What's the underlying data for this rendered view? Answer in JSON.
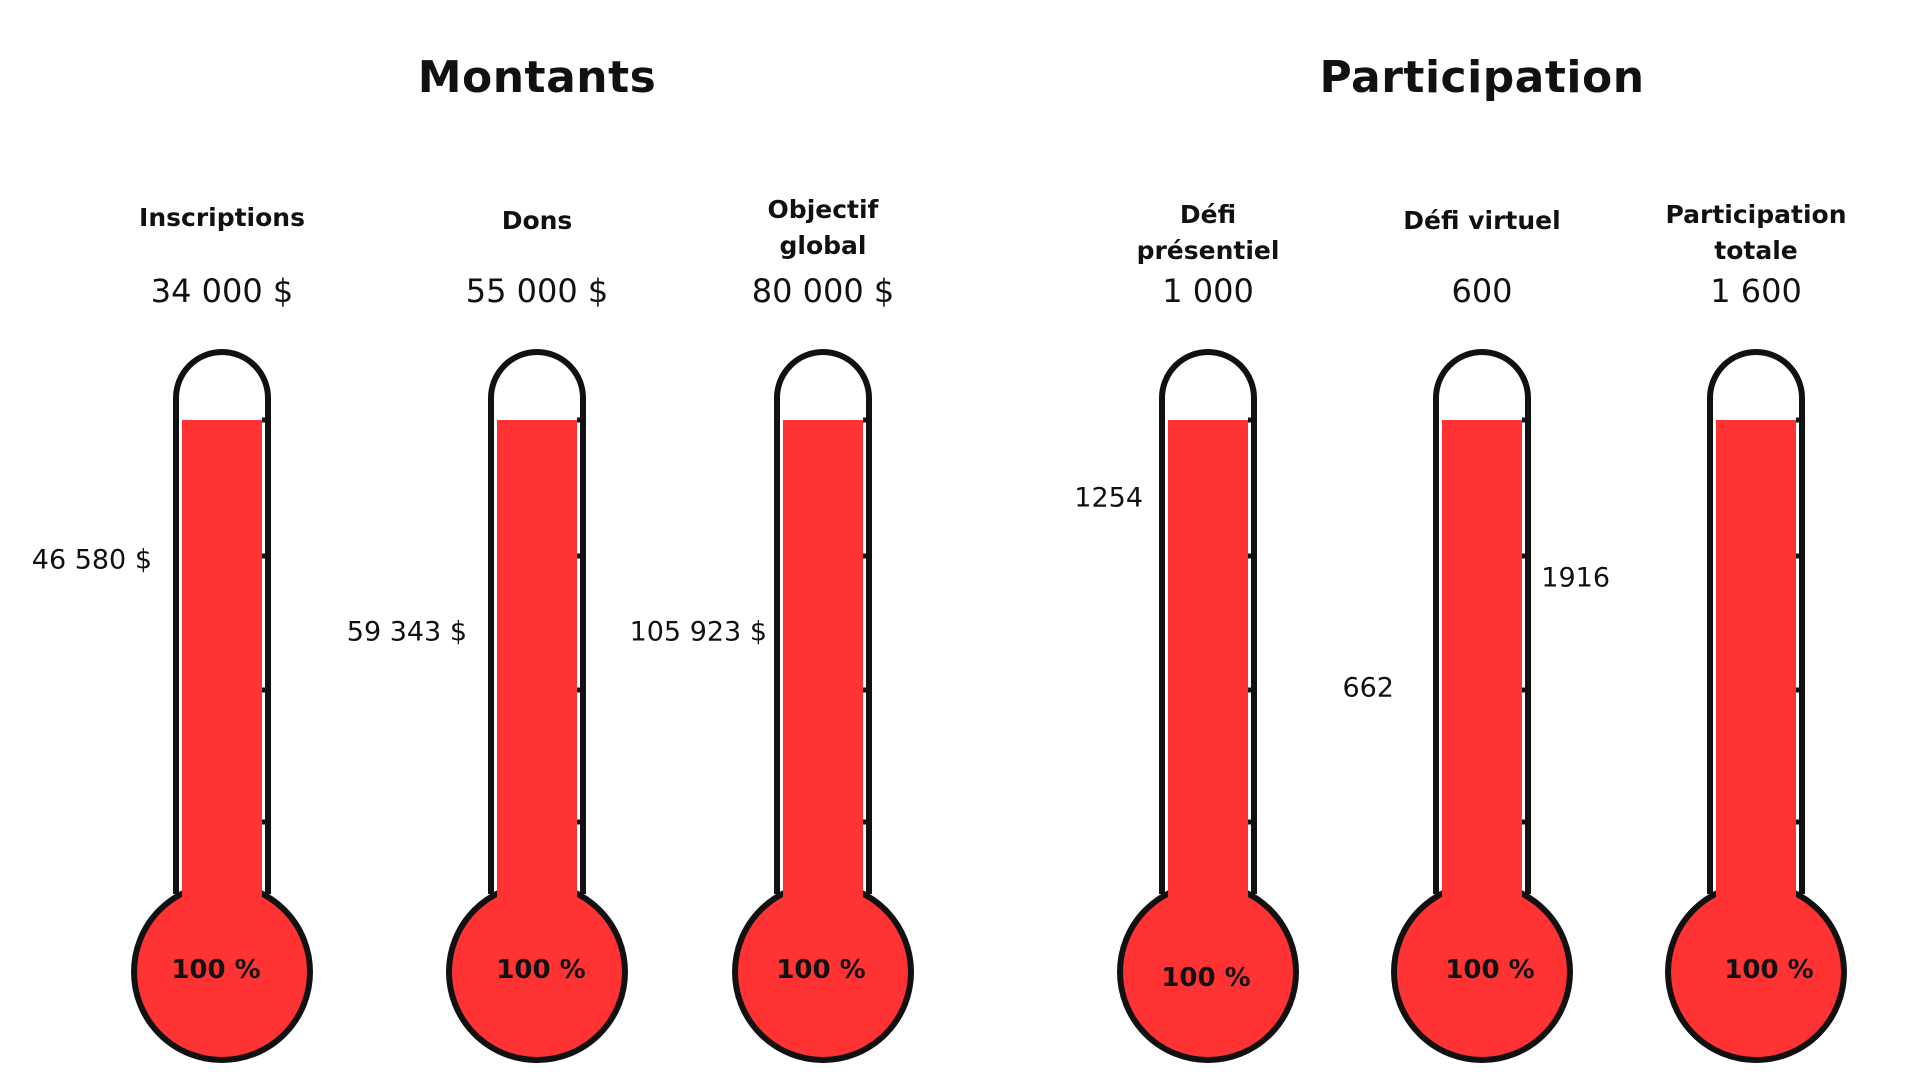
{
  "sections": [
    {
      "title": "Montants"
    },
    {
      "title": "Participation"
    }
  ],
  "colors": {
    "fill": "#FF3333",
    "outline": "#111111",
    "background": "#FFFFFF"
  },
  "chart_data": [
    {
      "type": "bar",
      "title": "Montants",
      "series": [
        {
          "name": "Inscriptions",
          "target": 34000,
          "target_label": "34 000 $",
          "actual": 46580,
          "actual_label": "46 580 $",
          "percent": 100,
          "percent_label": "100 %"
        },
        {
          "name": "Dons",
          "target": 55000,
          "target_label": "55 000 $",
          "actual": 59343,
          "actual_label": "59 343 $",
          "percent": 100,
          "percent_label": "100 %"
        },
        {
          "name": "Objectif\nglobal",
          "target": 80000,
          "target_label": "80 000 $",
          "actual": 105923,
          "actual_label": "105 923 $",
          "percent": 100,
          "percent_label": "100 %"
        }
      ]
    },
    {
      "type": "bar",
      "title": "Participation",
      "series": [
        {
          "name": "Défi\nprésentiel",
          "target": 1000,
          "target_label": "1 000",
          "actual": 1254,
          "actual_label": "1254",
          "percent": 100,
          "percent_label": "100 %"
        },
        {
          "name": "Défi virtuel",
          "target": 600,
          "target_label": "600",
          "actual": 662,
          "actual_label": "662",
          "percent": 100,
          "percent_label": "100 %"
        },
        {
          "name": "Participation\ntotale",
          "target": 1600,
          "target_label": "1 600",
          "actual": 1916,
          "actual_label": "1916",
          "percent": 100,
          "percent_label": "100 %"
        }
      ]
    }
  ]
}
